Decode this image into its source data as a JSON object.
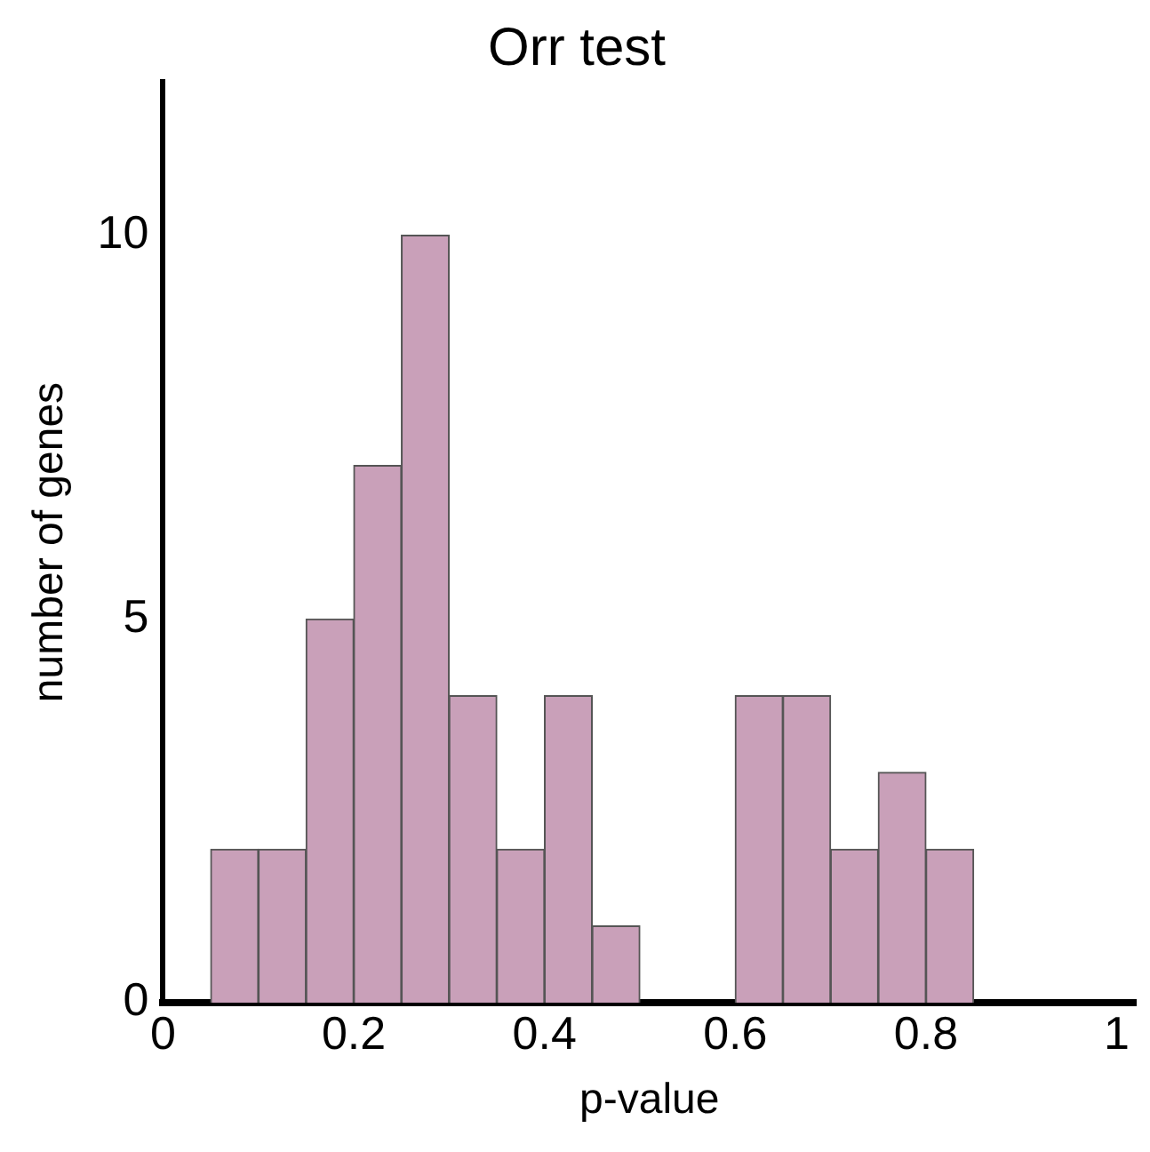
{
  "chart_data": {
    "type": "histogram",
    "title": "Orr test",
    "xlabel": "p-value",
    "ylabel": "number of genes",
    "bins": [
      0.05,
      0.1,
      0.15,
      0.2,
      0.25,
      0.3,
      0.35,
      0.4,
      0.45,
      0.5,
      0.55,
      0.6,
      0.65,
      0.7,
      0.75,
      0.8,
      0.85
    ],
    "values": [
      2,
      2,
      5,
      7,
      10,
      4,
      2,
      4,
      1,
      0,
      0,
      4,
      4,
      2,
      3,
      2
    ],
    "color": "#c9a0b9",
    "xlim": [
      0,
      1.02
    ],
    "xticks": [
      0,
      0.2,
      0.4,
      0.6,
      0.8,
      1
    ],
    "ylim": [
      0,
      12
    ],
    "yticks": [
      0,
      5,
      10
    ],
    "grid": false,
    "legend": false
  }
}
